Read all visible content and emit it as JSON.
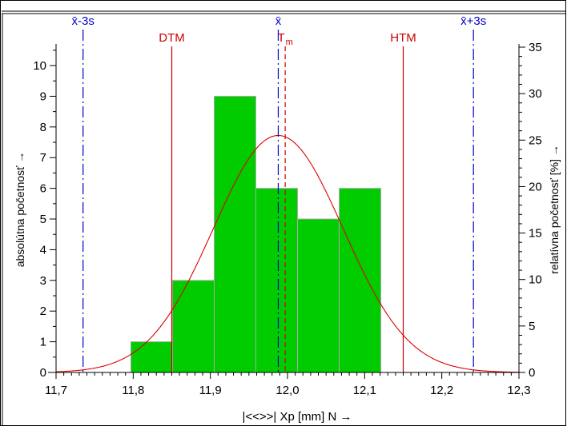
{
  "chart_data": {
    "type": "bar",
    "subtype": "histogram",
    "xlabel": "|<<>>|  Xp [mm]  N →",
    "ylabel_left": "absolútna početnosť →",
    "ylabel_right": "relatívna početnosť  [%] →",
    "xlim": [
      11.7,
      12.3
    ],
    "ylim_left": [
      0,
      10.6
    ],
    "ylim_right": [
      0,
      35
    ],
    "x_ticks": [
      11.7,
      11.8,
      11.9,
      12.0,
      12.1,
      12.2,
      12.3
    ],
    "x_tick_labels": [
      "11,7",
      "11,8",
      "11,9",
      "12,0",
      "12,1",
      "12,2",
      "12,3"
    ],
    "y_ticks_left": [
      0,
      1,
      2,
      3,
      4,
      5,
      6,
      7,
      8,
      9,
      10
    ],
    "y_tick_labels_left": [
      "0",
      "1",
      "2",
      "3",
      "4",
      "5",
      "6",
      "7",
      "8",
      "9",
      "10"
    ],
    "y_ticks_right": [
      0,
      5,
      10,
      15,
      20,
      25,
      30,
      35
    ],
    "y_tick_labels_right": [
      "0",
      "5",
      "10",
      "15",
      "20",
      "25",
      "30",
      "35"
    ],
    "bins": [
      {
        "x0": 11.797,
        "x1": 11.851,
        "count": 1
      },
      {
        "x0": 11.851,
        "x1": 11.905,
        "count": 3
      },
      {
        "x0": 11.905,
        "x1": 11.959,
        "count": 9
      },
      {
        "x0": 11.959,
        "x1": 12.013,
        "count": 6
      },
      {
        "x0": 12.013,
        "x1": 12.067,
        "count": 5
      },
      {
        "x0": 12.067,
        "x1": 12.121,
        "count": 6
      }
    ],
    "normal_curve": {
      "mean": 11.988,
      "sigma": 0.0842,
      "peak_percent": 25.5
    },
    "ref_lines": [
      {
        "key": "minus3s",
        "label": "x̄-3s",
        "x": 11.735,
        "style": "dashdot",
        "color": "#0000cc"
      },
      {
        "key": "mean",
        "label": "x̄",
        "x": 11.988,
        "style": "dashdot",
        "color": "#0000cc"
      },
      {
        "key": "plus3s",
        "label": "x̄+3s",
        "x": 12.241,
        "style": "dashdot",
        "color": "#0000cc"
      },
      {
        "key": "dtm",
        "label": "DTM",
        "x": 11.85,
        "style": "solid",
        "color": "#cc0000"
      },
      {
        "key": "tm",
        "label": "T",
        "sub": "m",
        "x": 11.997,
        "style": "dashed",
        "color": "#cc0000"
      },
      {
        "key": "htm",
        "label": "HTM",
        "x": 12.15,
        "style": "solid",
        "color": "#cc0000"
      }
    ],
    "colors": {
      "bar_fill": "#00cc00",
      "bar_stroke": "#aaaaaa",
      "curve": "#dd0000",
      "axis": "#000000"
    }
  }
}
